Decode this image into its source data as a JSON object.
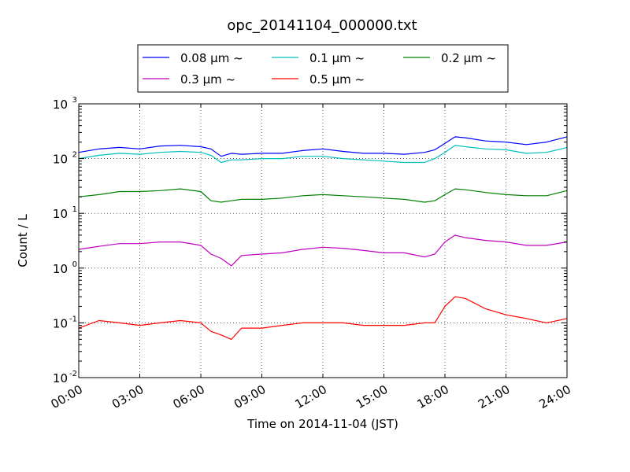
{
  "chart_data": {
    "type": "line",
    "title": "opc_20141104_000000.txt",
    "xlabel": "Time on 2014-11-04 (JST)",
    "ylabel": "Count / L",
    "x_unit": "hours",
    "xlim": [
      0,
      24
    ],
    "ylim": [
      0.01,
      1000
    ],
    "yscale": "log",
    "grid": true,
    "legend_position": "top-center",
    "x_ticks": [
      {
        "value": 0,
        "label": "00:00"
      },
      {
        "value": 3,
        "label": "03:00"
      },
      {
        "value": 6,
        "label": "06:00"
      },
      {
        "value": 9,
        "label": "09:00"
      },
      {
        "value": 12,
        "label": "12:00"
      },
      {
        "value": 15,
        "label": "15:00"
      },
      {
        "value": 18,
        "label": "18:00"
      },
      {
        "value": 21,
        "label": "21:00"
      },
      {
        "value": 24,
        "label": "24:00"
      }
    ],
    "y_ticks": [
      {
        "value": 0.01,
        "base": "10",
        "exp": "-2"
      },
      {
        "value": 0.1,
        "base": "10",
        "exp": "-1"
      },
      {
        "value": 1,
        "base": "10",
        "exp": "0"
      },
      {
        "value": 10,
        "base": "10",
        "exp": "1"
      },
      {
        "value": 100,
        "base": "10",
        "exp": "2"
      },
      {
        "value": 1000,
        "base": "10",
        "exp": "3"
      }
    ],
    "series": [
      {
        "name": "0.08 μm ~",
        "color": "#0000ff",
        "x": [
          0,
          1,
          2,
          3,
          4,
          5,
          6,
          6.5,
          7,
          7.5,
          8,
          9,
          10,
          11,
          12,
          13,
          14,
          15,
          16,
          17,
          17.5,
          18,
          18.5,
          19,
          20,
          21,
          22,
          23,
          24
        ],
        "y": [
          130,
          150,
          160,
          150,
          170,
          175,
          165,
          150,
          110,
          125,
          120,
          125,
          125,
          140,
          150,
          135,
          125,
          125,
          120,
          130,
          145,
          190,
          250,
          240,
          210,
          200,
          180,
          200,
          250
        ]
      },
      {
        "name": "0.1 μm ~",
        "color": "#00bfbf",
        "x": [
          0,
          1,
          2,
          3,
          4,
          5,
          6,
          6.5,
          7,
          7.5,
          8,
          9,
          10,
          11,
          12,
          13,
          14,
          15,
          16,
          17,
          17.5,
          18,
          18.5,
          19,
          20,
          21,
          22,
          23,
          24
        ],
        "y": [
          100,
          115,
          125,
          120,
          130,
          135,
          130,
          115,
          85,
          95,
          95,
          100,
          100,
          110,
          110,
          100,
          95,
          90,
          85,
          85,
          100,
          130,
          175,
          165,
          150,
          145,
          125,
          130,
          160
        ]
      },
      {
        "name": "0.2 μm ~",
        "color": "#008000",
        "x": [
          0,
          1,
          2,
          3,
          4,
          5,
          6,
          6.5,
          7,
          7.5,
          8,
          9,
          10,
          11,
          12,
          13,
          14,
          15,
          16,
          17,
          17.5,
          18,
          18.5,
          19,
          20,
          21,
          22,
          23,
          24
        ],
        "y": [
          20,
          22,
          25,
          25,
          26,
          28,
          25,
          17,
          16,
          17,
          18,
          18,
          19,
          21,
          22,
          21,
          20,
          19,
          18,
          16,
          17,
          22,
          28,
          27,
          24,
          22,
          21,
          21,
          26
        ]
      },
      {
        "name": "0.3 μm ~",
        "color": "#bf00bf",
        "x": [
          0,
          1,
          2,
          3,
          4,
          5,
          6,
          6.5,
          7,
          7.5,
          8,
          9,
          10,
          11,
          12,
          13,
          14,
          15,
          16,
          17,
          17.5,
          18,
          18.5,
          19,
          20,
          21,
          22,
          23,
          24
        ],
        "y": [
          2.2,
          2.5,
          2.8,
          2.8,
          3.0,
          3.0,
          2.6,
          1.8,
          1.5,
          1.1,
          1.7,
          1.8,
          1.9,
          2.2,
          2.4,
          2.3,
          2.1,
          1.9,
          1.9,
          1.6,
          1.8,
          3.0,
          4.0,
          3.6,
          3.2,
          3.0,
          2.6,
          2.6,
          3.0
        ]
      },
      {
        "name": "0.5 μm ~",
        "color": "#ff0000",
        "x": [
          0,
          1,
          2,
          3,
          4,
          5,
          6,
          6.5,
          7,
          7.5,
          8,
          9,
          10,
          11,
          12,
          13,
          14,
          15,
          16,
          17,
          17.5,
          18,
          18.5,
          19,
          20,
          21,
          22,
          23,
          24
        ],
        "y": [
          0.08,
          0.11,
          0.1,
          0.09,
          0.1,
          0.11,
          0.1,
          0.07,
          0.06,
          0.05,
          0.08,
          0.08,
          0.09,
          0.1,
          0.1,
          0.1,
          0.09,
          0.09,
          0.09,
          0.1,
          0.1,
          0.2,
          0.3,
          0.28,
          0.18,
          0.14,
          0.12,
          0.1,
          0.12
        ]
      }
    ]
  }
}
